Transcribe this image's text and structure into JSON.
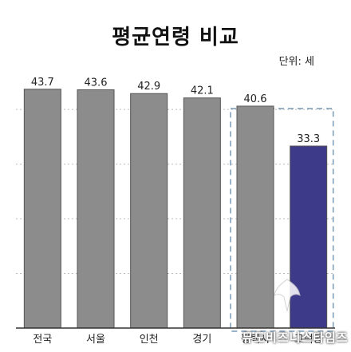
{
  "chart_data": {
    "type": "bar",
    "title": "평균연령 비교",
    "unit_label": "단위: 세",
    "categories": [
      "전국",
      "서울",
      "인천",
      "경기",
      "평택시",
      "고덕동"
    ],
    "values": [
      43.7,
      43.6,
      42.9,
      42.1,
      40.6,
      33.3
    ],
    "value_labels": [
      "43.7",
      "43.6",
      "42.9",
      "42.1",
      "40.6",
      "33.3"
    ],
    "ylim": [
      0,
      46
    ],
    "grid": true,
    "colors": {
      "default_bar": "#8c8c8c",
      "highlight_bar": "#3e3a8a",
      "highlight_box": "#7a9ab8",
      "grid": "#bbbbbb",
      "axis": "#333333"
    },
    "highlight_index": 5,
    "highlight_group": [
      4,
      5
    ]
  },
  "watermark": {
    "text": "뮤도비즈니스타임즈"
  }
}
